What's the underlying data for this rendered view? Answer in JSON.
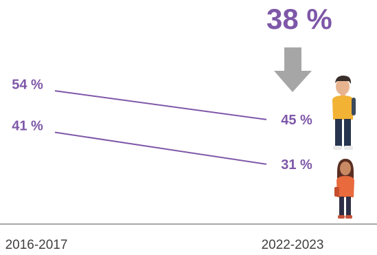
{
  "chart_data": {
    "type": "line",
    "x": [
      "2016-2017",
      "2022-2023"
    ],
    "series": [
      {
        "values": [
          54,
          45
        ],
        "labels": [
          "54 %",
          "45 %"
        ]
      },
      {
        "values": [
          41,
          31
        ],
        "labels": [
          "41 %",
          "31 %"
        ]
      }
    ],
    "ylim": [
      20,
      65
    ],
    "highlight": {
      "label": "38 %",
      "arrow": "down"
    },
    "series_icons": [
      "boy-student-icon",
      "girl-student-icon"
    ],
    "grid": false,
    "legend": "none"
  },
  "colors": {
    "line": "#7E57A8",
    "text": "#7E57A8",
    "arrow": "#A6A6A6",
    "axis": "#8C8C8C",
    "tick": "#404040"
  }
}
